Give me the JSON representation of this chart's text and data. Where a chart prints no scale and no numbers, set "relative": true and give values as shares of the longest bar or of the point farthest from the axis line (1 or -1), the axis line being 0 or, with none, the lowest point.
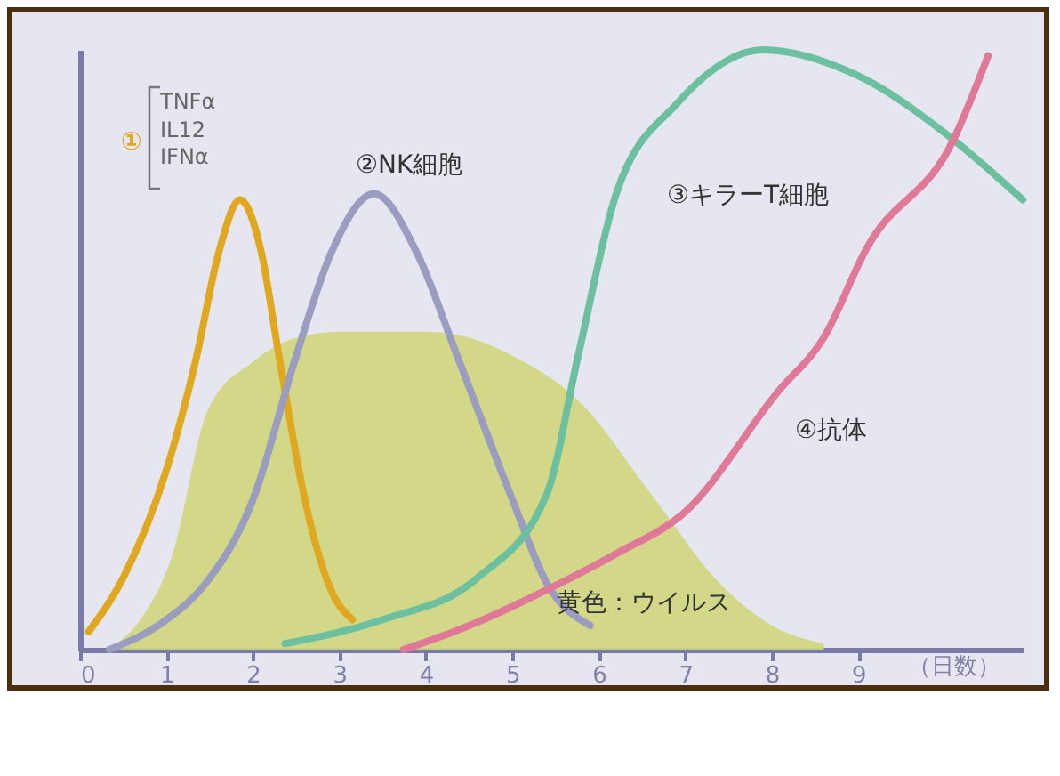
{
  "chart_data": {
    "type": "line",
    "relative": true,
    "xlabel": "（日数）",
    "xlim": [
      0,
      10.9
    ],
    "xticks": [
      0,
      1,
      2,
      3,
      4,
      5,
      6,
      7,
      8,
      9
    ],
    "legend": false,
    "grid": false,
    "marker": "none",
    "line_style": "solid",
    "annotations": [
      "TNFα",
      "IL12",
      "IFNα"
    ],
    "series": [
      {
        "name": "黄色：ウイルス",
        "type": "area",
        "color": "#cfd67c",
        "x": [
          0.3,
          0.7,
          1.05,
          1.48,
          2.0,
          2.5,
          3.0,
          4.0,
          4.5,
          5.0,
          5.8,
          6.6,
          7.4,
          8.0,
          8.6
        ],
        "values": [
          0,
          0.05,
          0.15,
          0.4,
          0.48,
          0.52,
          0.53,
          0.53,
          0.52,
          0.49,
          0.41,
          0.26,
          0.11,
          0.04,
          0.01
        ]
      },
      {
        "name": "①",
        "color": "#e0a820",
        "x": [
          0.1,
          0.5,
          1.0,
          1.35,
          1.6,
          1.85,
          2.1,
          2.3,
          2.6,
          2.9,
          3.15
        ],
        "values": [
          0.03,
          0.12,
          0.3,
          0.49,
          0.66,
          0.75,
          0.66,
          0.49,
          0.25,
          0.1,
          0.05
        ]
      },
      {
        "name": "②NK細胞",
        "color": "#9a9cc0",
        "x": [
          0.34,
          1.0,
          1.45,
          2.0,
          2.5,
          2.9,
          3.4,
          3.9,
          4.36,
          5.0,
          5.4,
          5.9
        ],
        "values": [
          0,
          0.05,
          0.11,
          0.25,
          0.49,
          0.66,
          0.76,
          0.66,
          0.49,
          0.25,
          0.11,
          0.04
        ]
      },
      {
        "name": "③キラーT細胞",
        "color": "#6cc0a0",
        "x": [
          2.37,
          3.5,
          4.6,
          5.4,
          5.76,
          6.2,
          6.9,
          7.9,
          8.95,
          10.1,
          10.9
        ],
        "values": [
          0.01,
          0.05,
          0.12,
          0.26,
          0.49,
          0.76,
          0.91,
          1.0,
          0.96,
          0.85,
          0.75
        ]
      },
      {
        "name": "④抗体",
        "color": "#e07898",
        "x": [
          3.74,
          4.5,
          5.4,
          6.2,
          7.0,
          8.07,
          8.6,
          9.1,
          10.1,
          10.5
        ],
        "values": [
          0,
          0.04,
          0.1,
          0.16,
          0.23,
          0.43,
          0.52,
          0.67,
          0.85,
          0.99
        ]
      }
    ]
  }
}
